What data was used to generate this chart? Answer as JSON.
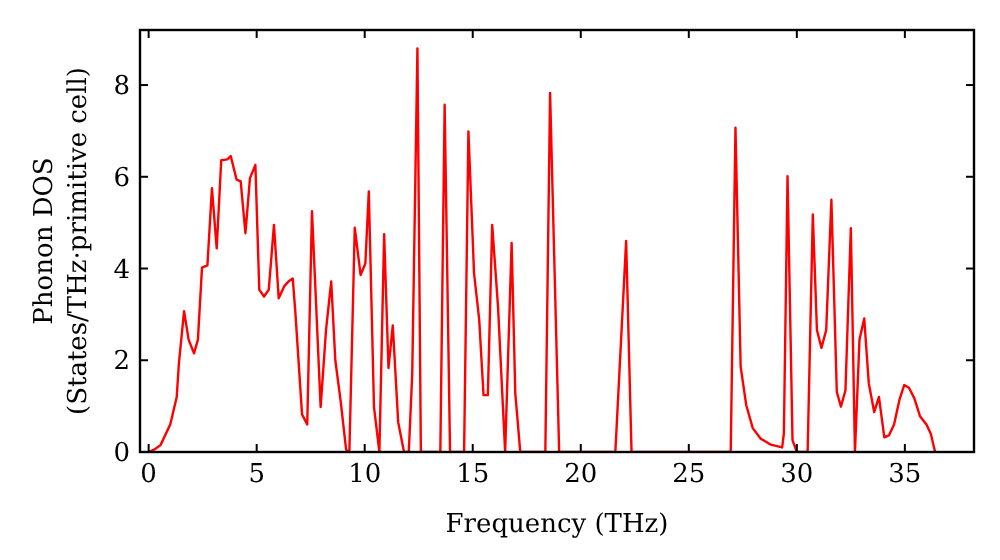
{
  "chart_data": {
    "type": "line",
    "xlabel": "Frequency (THz)",
    "ylabel": "Phonon DOS\n(States/THz·primitive cell)",
    "xlim": [
      -0.4,
      38.2
    ],
    "ylim": [
      0,
      9.2
    ],
    "xticks": [
      0,
      5,
      10,
      15,
      20,
      25,
      30,
      35
    ],
    "yticks": [
      0,
      2,
      4,
      6,
      8
    ],
    "grid": false,
    "marker": "none",
    "line_style": "solid",
    "series": [
      {
        "color": "#ff0000",
        "x": [
          0,
          0.25,
          0.55,
          1.0,
          1.3,
          1.4,
          1.64,
          1.85,
          2.1,
          2.28,
          2.47,
          2.72,
          2.93,
          3.15,
          3.36,
          3.64,
          3.8,
          4.07,
          4.26,
          4.48,
          4.69,
          4.94,
          5.12,
          5.34,
          5.56,
          5.8,
          6.02,
          6.27,
          6.48,
          6.67,
          6.79,
          7.1,
          7.34,
          7.56,
          7.96,
          8.21,
          8.45,
          8.64,
          8.89,
          9.14,
          9.29,
          9.54,
          9.81,
          10.03,
          10.19,
          10.43,
          10.68,
          10.9,
          11.1,
          11.3,
          11.55,
          11.82,
          12.04,
          12.2,
          12.44,
          12.6,
          12.7,
          13.5,
          13.7,
          13.95,
          14.6,
          14.8,
          15.06,
          15.3,
          15.5,
          15.7,
          15.9,
          16.17,
          16.5,
          16.8,
          16.97,
          17.2,
          18.36,
          18.58,
          19.0,
          21.6,
          22.1,
          22.35,
          26.94,
          27.16,
          27.4,
          27.66,
          27.96,
          28.33,
          28.8,
          29.32,
          29.4,
          29.57,
          29.8,
          30.0,
          30.5,
          30.74,
          30.93,
          31.14,
          31.36,
          31.6,
          31.85,
          32.04,
          32.25,
          32.5,
          32.69,
          32.9,
          33.12,
          33.33,
          33.58,
          33.8,
          34.05,
          34.26,
          34.5,
          34.75,
          34.97,
          35.19,
          35.44,
          35.7,
          36.0,
          36.2,
          36.4
        ],
        "values": [
          0,
          0.05,
          0.15,
          0.6,
          1.2,
          1.93,
          3.07,
          2.45,
          2.15,
          2.45,
          4.02,
          4.07,
          5.75,
          4.44,
          6.36,
          6.38,
          6.45,
          5.94,
          5.9,
          4.77,
          5.97,
          6.26,
          3.54,
          3.39,
          3.54,
          4.95,
          3.35,
          3.61,
          3.72,
          3.78,
          3.05,
          0.82,
          0.6,
          5.25,
          0.98,
          2.66,
          3.72,
          2.0,
          1.1,
          0.05,
          0,
          4.89,
          3.86,
          4.11,
          5.68,
          0.98,
          0,
          4.75,
          1.83,
          2.76,
          0.65,
          0,
          0,
          1.7,
          8.8,
          0,
          0,
          0,
          7.57,
          0,
          0,
          6.99,
          3.9,
          2.88,
          1.24,
          1.24,
          4.95,
          3.17,
          0,
          4.56,
          1.28,
          0,
          0,
          7.83,
          0,
          0,
          4.6,
          0,
          0,
          7.07,
          1.86,
          1.02,
          0.52,
          0.29,
          0.16,
          0.1,
          0.4,
          6.01,
          0.26,
          0,
          0,
          5.18,
          2.66,
          2.27,
          2.66,
          5.5,
          1.31,
          0.99,
          1.34,
          4.88,
          0,
          2.45,
          2.91,
          1.5,
          0.87,
          1.2,
          0.32,
          0.36,
          0.6,
          1.14,
          1.46,
          1.4,
          1.17,
          0.78,
          0.6,
          0.4,
          0
        ]
      }
    ]
  }
}
